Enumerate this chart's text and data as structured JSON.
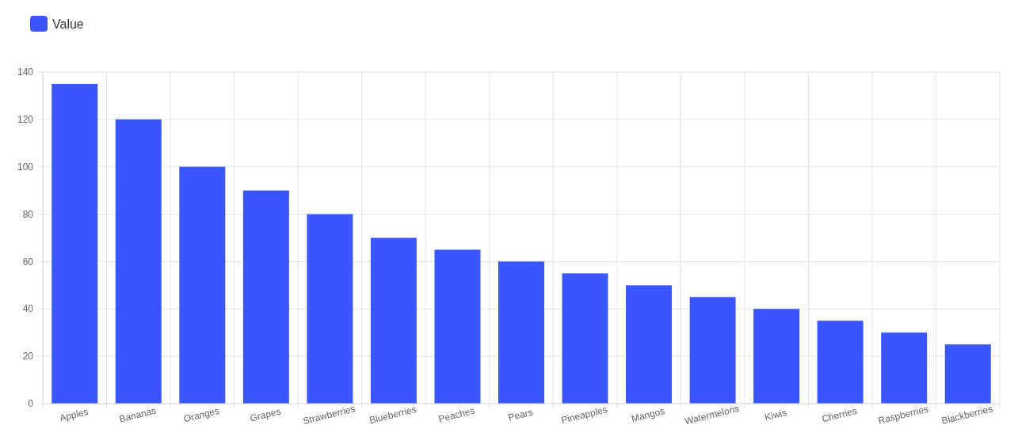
{
  "chart_data": {
    "type": "bar",
    "categories": [
      "Apples",
      "Bananas",
      "Oranges",
      "Grapes",
      "Strawberries",
      "Blueberries",
      "Peaches",
      "Pears",
      "Pineapples",
      "Mangos",
      "Watermelons",
      "Kiwis",
      "Cherries",
      "Raspberries",
      "Blackberries"
    ],
    "series": [
      {
        "name": "Value",
        "color": "#3a57ff",
        "values": [
          135,
          120,
          100,
          90,
          80,
          70,
          65,
          60,
          55,
          50,
          45,
          40,
          35,
          30,
          25
        ]
      }
    ],
    "ylim": [
      0,
      140
    ],
    "yticks": [
      0,
      20,
      40,
      60,
      80,
      100,
      120,
      140
    ],
    "grid": true,
    "legend": "top left"
  }
}
